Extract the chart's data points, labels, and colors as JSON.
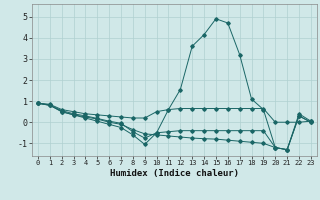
{
  "title": "",
  "xlabel": "Humidex (Indice chaleur)",
  "xlim": [
    -0.5,
    23.5
  ],
  "ylim": [
    -1.6,
    5.6
  ],
  "xticks": [
    0,
    1,
    2,
    3,
    4,
    5,
    6,
    7,
    8,
    9,
    10,
    11,
    12,
    13,
    14,
    15,
    16,
    17,
    18,
    19,
    20,
    21,
    22,
    23
  ],
  "yticks": [
    -1,
    0,
    1,
    2,
    3,
    4,
    5
  ],
  "background_color": "#d0e8e8",
  "grid_color": "#b0d0d0",
  "line_color": "#1a6666",
  "lines": [
    {
      "x": [
        0,
        1,
        2,
        3,
        4,
        5,
        6,
        7,
        8,
        9,
        10,
        11,
        12,
        13,
        14,
        15,
        16,
        17,
        18,
        19,
        20,
        21,
        22,
        23
      ],
      "y": [
        0.9,
        0.85,
        0.6,
        0.5,
        0.4,
        0.35,
        0.3,
        0.25,
        0.2,
        0.2,
        0.5,
        0.6,
        0.65,
        0.65,
        0.65,
        0.65,
        0.65,
        0.65,
        0.65,
        0.65,
        0.0,
        0.0,
        0.0,
        0.05
      ]
    },
    {
      "x": [
        0,
        1,
        2,
        3,
        4,
        5,
        6,
        7,
        8,
        9,
        10,
        11,
        12,
        13,
        14,
        15,
        16,
        17,
        18,
        19,
        20,
        21,
        22,
        23
      ],
      "y": [
        0.9,
        0.8,
        0.55,
        0.4,
        0.3,
        0.18,
        0.05,
        -0.05,
        -0.45,
        -0.75,
        -0.5,
        0.6,
        1.55,
        3.6,
        4.15,
        4.9,
        4.7,
        3.2,
        1.1,
        0.6,
        -1.2,
        -1.3,
        0.4,
        0.05
      ]
    },
    {
      "x": [
        0,
        1,
        2,
        3,
        4,
        5,
        6,
        7,
        8,
        9,
        10,
        11,
        12,
        13,
        14,
        15,
        16,
        17,
        18,
        19,
        20,
        21,
        22,
        23
      ],
      "y": [
        0.9,
        0.8,
        0.5,
        0.35,
        0.2,
        0.05,
        -0.1,
        -0.25,
        -0.6,
        -1.05,
        -0.5,
        -0.45,
        -0.4,
        -0.4,
        -0.4,
        -0.4,
        -0.4,
        -0.4,
        -0.4,
        -0.4,
        -1.2,
        -1.3,
        0.3,
        0.0
      ]
    },
    {
      "x": [
        0,
        1,
        2,
        3,
        4,
        5,
        6,
        7,
        8,
        9,
        10,
        11,
        12,
        13,
        14,
        15,
        16,
        17,
        18,
        19,
        20,
        21,
        22,
        23
      ],
      "y": [
        0.9,
        0.82,
        0.5,
        0.35,
        0.25,
        0.15,
        0.0,
        -0.1,
        -0.35,
        -0.55,
        -0.6,
        -0.65,
        -0.7,
        -0.75,
        -0.78,
        -0.8,
        -0.85,
        -0.9,
        -0.95,
        -1.0,
        -1.2,
        -1.3,
        0.3,
        0.0
      ]
    }
  ]
}
